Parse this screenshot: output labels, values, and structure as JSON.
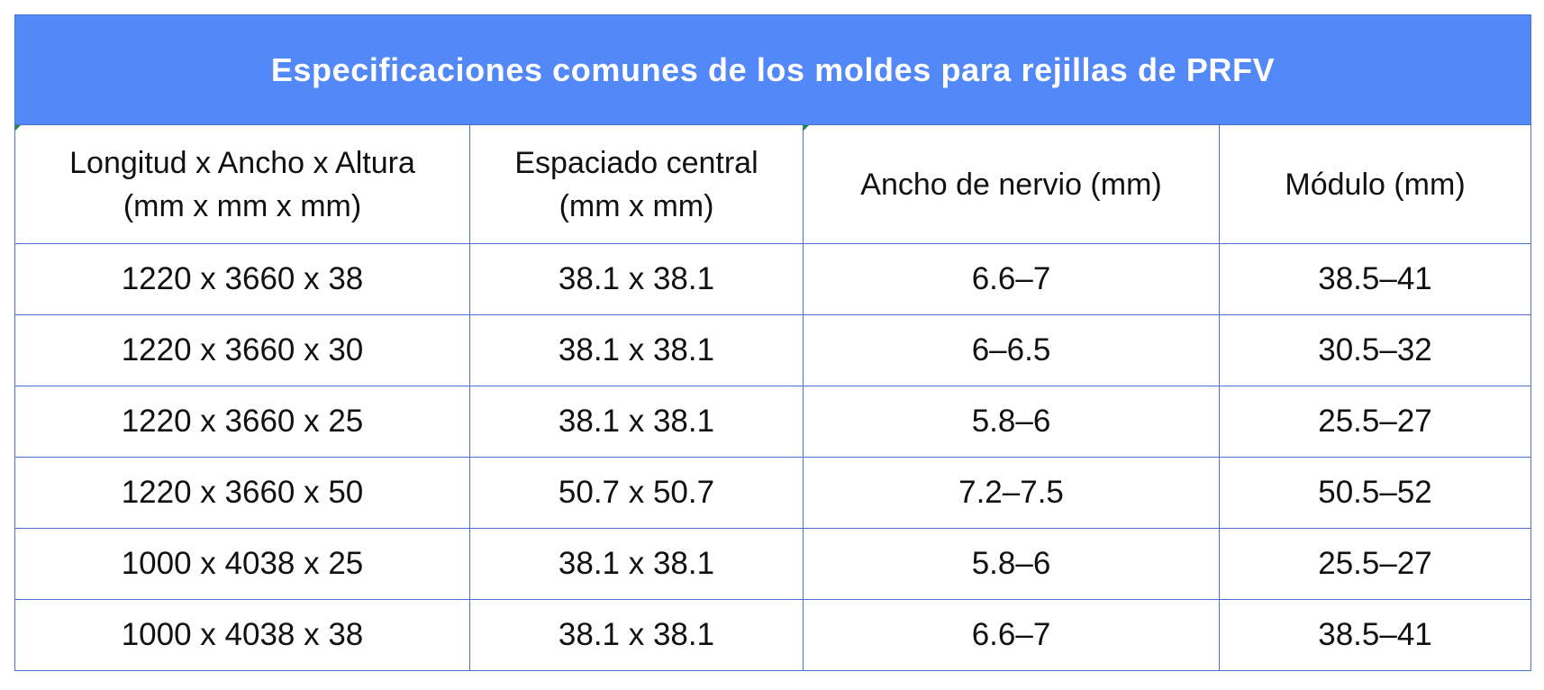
{
  "table": {
    "title": "Especificaciones comunes de los moldes para rejillas de PRFV",
    "headers": [
      [
        "Longitud x Ancho x Altura",
        "(mm x mm x mm)"
      ],
      [
        "Espaciado central",
        "(mm x mm)"
      ],
      [
        "Ancho de nervio (mm)"
      ],
      [
        "Módulo (mm)"
      ]
    ],
    "rows": [
      [
        "1220 x 3660 x 38",
        "38.1 x 38.1",
        "6.6–7",
        "38.5–41"
      ],
      [
        "1220 x 3660 x 30",
        "38.1 x 38.1",
        "6–6.5",
        "30.5–32"
      ],
      [
        "1220 x 3660 x 25",
        "38.1 x 38.1",
        "5.8–6",
        "25.5–27"
      ],
      [
        "1220 x 3660 x 50",
        "50.7 x 50.7",
        "7.2–7.5",
        "50.5–52"
      ],
      [
        "1000 x 4038 x 25",
        "38.1 x 38.1",
        "5.8–6",
        "25.5–27"
      ],
      [
        "1000 x 4038 x 38",
        "38.1 x 38.1",
        "6.6–7",
        "38.5–41"
      ]
    ],
    "colors": {
      "header_background": "#5288f8",
      "header_text": "#ffffff",
      "border": "#4a72c9",
      "body_text": "#111111"
    }
  }
}
